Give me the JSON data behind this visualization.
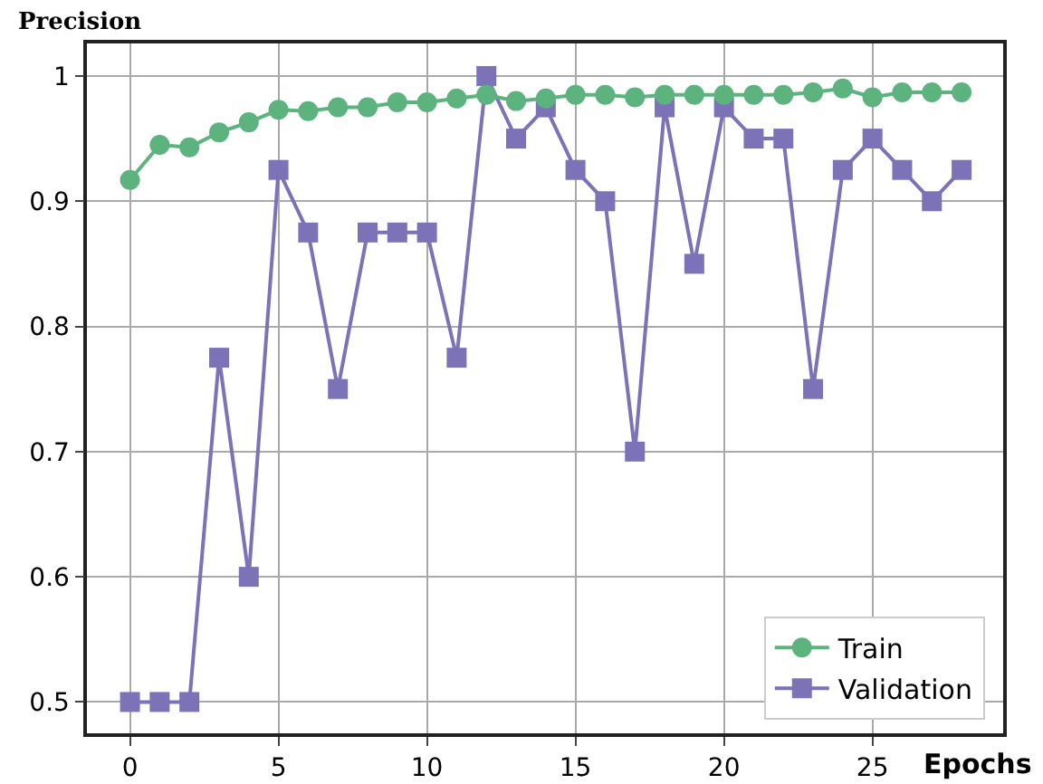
{
  "chart_data": {
    "type": "line",
    "ylabel": "Precision",
    "xlabel": "Epochs",
    "x": [
      0,
      1,
      2,
      3,
      4,
      5,
      6,
      7,
      8,
      9,
      10,
      11,
      12,
      13,
      14,
      15,
      16,
      17,
      18,
      19,
      20,
      21,
      22,
      23,
      24,
      25,
      26,
      27,
      28
    ],
    "series": [
      {
        "name": "Train",
        "color": "#5cb37e",
        "marker": "circle",
        "values": [
          0.917,
          0.945,
          0.943,
          0.955,
          0.963,
          0.973,
          0.972,
          0.975,
          0.975,
          0.979,
          0.979,
          0.982,
          0.985,
          0.98,
          0.982,
          0.985,
          0.985,
          0.983,
          0.985,
          0.985,
          0.985,
          0.985,
          0.985,
          0.987,
          0.99,
          0.983,
          0.987,
          0.987,
          0.987
        ]
      },
      {
        "name": "Validation",
        "color": "#7b72b8",
        "marker": "square",
        "values": [
          0.5,
          0.5,
          0.5,
          0.775,
          0.6,
          0.925,
          0.875,
          0.75,
          0.875,
          0.875,
          0.875,
          0.775,
          1.0,
          0.95,
          0.975,
          0.925,
          0.9,
          0.7,
          0.975,
          0.85,
          0.975,
          0.95,
          0.95,
          0.75,
          0.925,
          0.95,
          0.925,
          0.9,
          0.925
        ]
      }
    ],
    "xlim": [
      -1.45,
      29.4
    ],
    "xticks": [
      0,
      5,
      10,
      15,
      20,
      25
    ],
    "ylim": [
      0.475,
      1.026
    ],
    "yticks": [
      0.5,
      0.6,
      0.7,
      0.8,
      0.9,
      1.0
    ],
    "grid": true,
    "legend": "bottom right",
    "line_style": "solid"
  }
}
